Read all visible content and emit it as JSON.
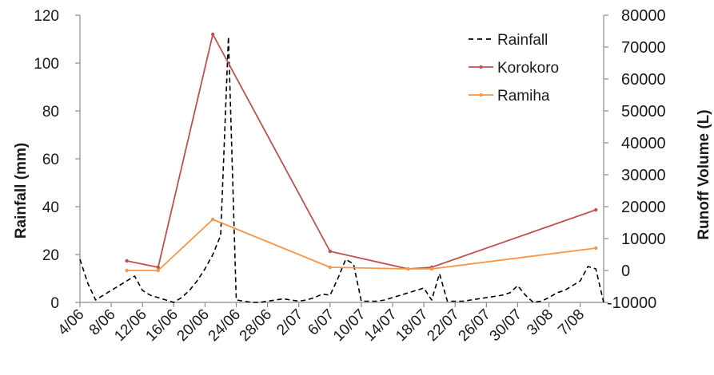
{
  "chart_data": {
    "type": "line",
    "title": "",
    "xlabel": "",
    "ylabel_left": "Rainfall (mm)",
    "ylabel_right": "Runoff Volume (L)",
    "ylim_left": [
      0,
      120
    ],
    "ylim_right": [
      -10000,
      80000
    ],
    "yticks_left": [
      "0",
      "20",
      "40",
      "60",
      "80",
      "100",
      "120"
    ],
    "yticks_right": [
      "-10000",
      "0",
      "10000",
      "20000",
      "30000",
      "40000",
      "50000",
      "60000",
      "70000",
      "80000"
    ],
    "x_tick_labels": [
      "4/06",
      "8/06",
      "12/06",
      "16/06",
      "20/06",
      "24/06",
      "28/06",
      "2/07",
      "6/07",
      "10/07",
      "14/07",
      "18/07",
      "22/07",
      "26/07",
      "30/07",
      "3/08",
      "7/08"
    ],
    "x_tick_dates": [
      "2010-06-04",
      "2010-06-08",
      "2010-06-12",
      "2010-06-16",
      "2010-06-20",
      "2010-06-24",
      "2010-06-28",
      "2010-07-02",
      "2010-07-06",
      "2010-07-10",
      "2010-07-14",
      "2010-07-18",
      "2010-07-22",
      "2010-07-26",
      "2010-07-30",
      "2010-08-03",
      "2010-08-07"
    ],
    "xlim": [
      "2010-06-04",
      "2010-08-10"
    ],
    "legend_position": "top-right",
    "grid": false,
    "series": [
      {
        "name": "Rainfall",
        "axis": "left",
        "style": "dashed",
        "color": "#000000",
        "x": [
          "2010-06-04",
          "2010-06-05",
          "2010-06-06",
          "2010-06-07",
          "2010-06-08",
          "2010-06-09",
          "2010-06-10",
          "2010-06-11",
          "2010-06-12",
          "2010-06-13",
          "2010-06-14",
          "2010-06-15",
          "2010-06-16",
          "2010-06-17",
          "2010-06-18",
          "2010-06-19",
          "2010-06-20",
          "2010-06-21",
          "2010-06-22",
          "2010-06-23",
          "2010-06-24",
          "2010-06-25",
          "2010-06-26",
          "2010-06-27",
          "2010-06-28",
          "2010-06-29",
          "2010-06-30",
          "2010-07-01",
          "2010-07-02",
          "2010-07-03",
          "2010-07-04",
          "2010-07-05",
          "2010-07-06",
          "2010-07-07",
          "2010-07-08",
          "2010-07-09",
          "2010-07-10",
          "2010-07-11",
          "2010-07-12",
          "2010-07-13",
          "2010-07-14",
          "2010-07-15",
          "2010-07-16",
          "2010-07-17",
          "2010-07-18",
          "2010-07-19",
          "2010-07-20",
          "2010-07-21",
          "2010-07-22",
          "2010-07-23",
          "2010-07-24",
          "2010-07-25",
          "2010-07-26",
          "2010-07-27",
          "2010-07-28",
          "2010-07-29",
          "2010-07-30",
          "2010-07-31",
          "2010-08-01",
          "2010-08-02",
          "2010-08-03",
          "2010-08-04",
          "2010-08-05",
          "2010-08-06",
          "2010-08-07",
          "2010-08-08",
          "2010-08-09",
          "2010-08-10"
        ],
        "values": [
          18,
          8,
          1,
          3,
          5,
          7,
          9,
          11,
          5,
          3,
          2,
          1,
          0,
          2,
          5,
          9,
          14,
          20,
          28,
          111,
          1,
          0.5,
          0,
          0,
          0.5,
          1,
          1.5,
          1,
          0.5,
          1,
          2,
          3.5,
          3,
          10,
          18,
          16,
          0.5,
          0.5,
          0.5,
          1,
          2,
          3,
          4,
          5,
          6,
          1,
          12,
          0.5,
          0.5,
          0.5,
          1,
          1.5,
          2,
          2.5,
          3,
          4,
          7,
          3,
          0,
          0.5,
          2,
          4,
          5,
          7,
          9,
          15,
          14,
          0
        ]
      },
      {
        "name": "Korokoro",
        "axis": "right",
        "style": "solid",
        "color": "#c0504d",
        "x": [
          "2010-06-10",
          "2010-06-14",
          "2010-06-21",
          "2010-07-06",
          "2010-07-16",
          "2010-07-19",
          "2010-08-09"
        ],
        "values": [
          3000,
          1000,
          74000,
          6000,
          500,
          1000,
          19000
        ]
      },
      {
        "name": "Ramiha",
        "axis": "right",
        "style": "solid",
        "color": "#f79646",
        "x": [
          "2010-06-10",
          "2010-06-14",
          "2010-06-21",
          "2010-07-06",
          "2010-07-16",
          "2010-07-19",
          "2010-08-09"
        ],
        "values": [
          0,
          0,
          16000,
          1000,
          500,
          500,
          7000
        ]
      }
    ]
  }
}
